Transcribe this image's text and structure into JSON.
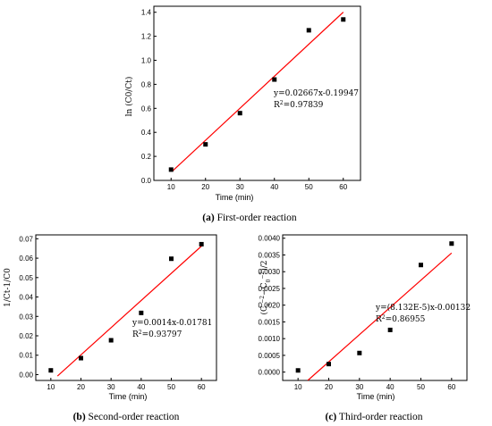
{
  "chart_data": [
    {
      "type": "scatter",
      "xlabel": "Time (min)",
      "ylabel": "ln (C0/Ct)",
      "x": [
        10,
        20,
        30,
        40,
        50,
        60
      ],
      "y": [
        0.09,
        0.3,
        0.56,
        0.84,
        1.25,
        1.34
      ],
      "xlim": [
        5,
        65
      ],
      "ylim": [
        0,
        1.45
      ],
      "xticks": [
        "10",
        "20",
        "30",
        "40",
        "50",
        "60"
      ],
      "yticks": [
        "0.0",
        "0.2",
        "0.4",
        "0.6",
        "0.8",
        "1.0",
        "1.2",
        "1.4"
      ],
      "fit": {
        "slope": 0.02667,
        "intercept": -0.19947,
        "x_range": [
          10.5,
          60
        ]
      },
      "equation": "y=0.02667x-0.19947",
      "r2_prefix": "R",
      "r2_value": "=0.97839",
      "caption_letter": "(a)",
      "caption_text": " First-order reaction",
      "color": "#ff0000"
    },
    {
      "type": "scatter",
      "xlabel": "Time (min)",
      "ylabel": "1/Ct-1/C0",
      "x": [
        10,
        20,
        30,
        40,
        50,
        60
      ],
      "y": [
        0.0022,
        0.0085,
        0.0177,
        0.0318,
        0.0597,
        0.0672
      ],
      "xlim": [
        5,
        65
      ],
      "ylim": [
        -0.003,
        0.072
      ],
      "xticks": [
        "10",
        "20",
        "30",
        "40",
        "50",
        "60"
      ],
      "yticks": [
        "0.00",
        "0.01",
        "0.02",
        "0.03",
        "0.04",
        "0.05",
        "0.06",
        "0.07"
      ],
      "fit": {
        "slope": 0.0014,
        "intercept": -0.01781,
        "x_range": [
          12.2,
          60
        ]
      },
      "equation": "y=0.0014x-0.01781",
      "r2_prefix": "R",
      "r2_value": "=0.93797",
      "caption_letter": "(b)",
      "caption_text": " Second-order reaction",
      "color": "#ff0000"
    },
    {
      "type": "scatter",
      "xlabel": "Time (min)",
      "ylabel": "(Ct-2-C0-2)/2",
      "x": [
        10,
        20,
        30,
        40,
        50,
        60
      ],
      "y": [
        5e-05,
        0.00024,
        0.00057,
        0.00126,
        0.0032,
        0.00384
      ],
      "xlim": [
        5,
        65
      ],
      "ylim": [
        -0.00025,
        0.0041
      ],
      "xticks": [
        "10",
        "20",
        "30",
        "40",
        "50",
        "60"
      ],
      "yticks": [
        "0.0000",
        "0.0005",
        "0.0010",
        "0.0015",
        "0.0020",
        "0.0025",
        "0.0030",
        "0.0035",
        "0.0040"
      ],
      "fit": {
        "slope": 8.132e-05,
        "intercept": -0.00132,
        "x_range": [
          13.2,
          60
        ]
      },
      "equation": "y=(8.132E-5)x-0.00132",
      "r2_prefix": "R",
      "r2_value": "=0.86955",
      "caption_letter": "(c)",
      "caption_text": " Third-order reaction",
      "color": "#ff0000"
    }
  ]
}
